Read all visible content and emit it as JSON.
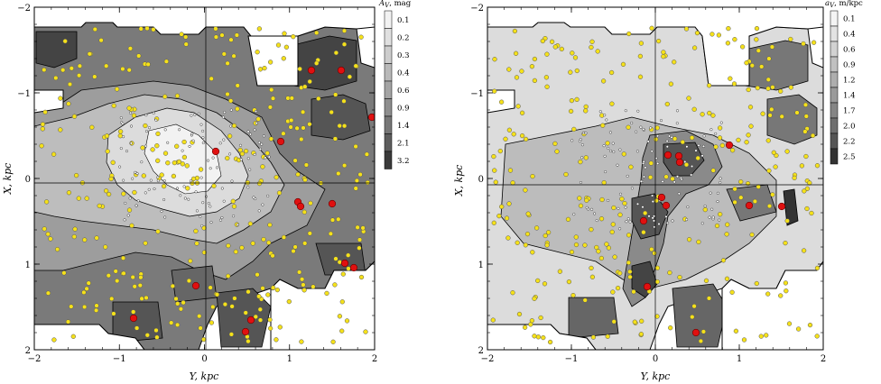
{
  "chart_data": [
    {
      "type": "heatmap",
      "panel": "left",
      "xlabel": "Y, kpc",
      "ylabel": "X, kpc",
      "xlim": [
        -2,
        2
      ],
      "ylim": [
        2,
        -2
      ],
      "xticks": [
        "−2",
        "−1",
        "0",
        "1",
        "2"
      ],
      "yticks": [
        "−2",
        "−1",
        "0",
        "1",
        "2"
      ],
      "colorbar": {
        "title": "A_V, mag",
        "title_main": "A",
        "title_sub": "V",
        "title_rest": ", mag",
        "levels": [
          "0.1",
          "0.2",
          "0.3",
          "0.4",
          "0.6",
          "0.9",
          "1.4",
          "2.1",
          "3.2"
        ],
        "colors": [
          "#f2f2f2",
          "#e0e0e0",
          "#cdcdcd",
          "#b9b9b9",
          "#a4a4a4",
          "#8e8e8e",
          "#777777",
          "#5e5e5e",
          "#3a3a3a"
        ]
      },
      "grid": false
    },
    {
      "type": "heatmap",
      "panel": "right",
      "xlabel": "Y, kpc",
      "ylabel": "X, kpc",
      "xlim": [
        -2,
        2
      ],
      "ylim": [
        2,
        -2
      ],
      "xticks": [
        "−2",
        "−1",
        "0",
        "1",
        "2"
      ],
      "yticks": [
        "−2",
        "−1",
        "0",
        "1",
        "2"
      ],
      "colorbar": {
        "title": "a_V, m/kpc",
        "title_main": "a",
        "title_sub": "V",
        "title_rest": ", m/kpc",
        "levels": [
          "0.1",
          "0.4",
          "0.6",
          "0.9",
          "1.2",
          "1.4",
          "1.7",
          "2.0",
          "2.2",
          "2.5"
        ],
        "colors": [
          "#f4f4f4",
          "#e3e3e3",
          "#d2d2d2",
          "#c0c0c0",
          "#aeaeae",
          "#9a9a9a",
          "#858585",
          "#6f6f6f",
          "#555555",
          "#333333"
        ]
      },
      "grid": false
    }
  ]
}
